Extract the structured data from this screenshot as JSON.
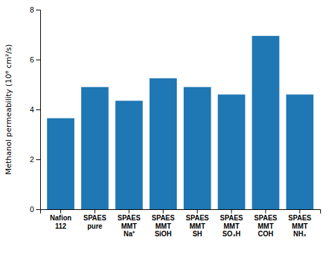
{
  "chart_data": {
    "type": "bar",
    "categories": [
      "Nafion\n112",
      "SPAES\npure",
      "SPAES\nMMT\nNa⁺",
      "SPAES\nMMT\nSiOH",
      "SPAES\nMMT\nSH",
      "SPAES\nMMT\nSO₃H",
      "SPAES\nMMT\nCOH",
      "SPAES\nMMT\nNH₂"
    ],
    "values": [
      3.65,
      4.9,
      4.35,
      5.25,
      4.9,
      4.6,
      6.95,
      4.6
    ],
    "ylabel": "Methanol permeability (10⁸ cm²/s)",
    "ylim": [
      0,
      8
    ],
    "yticks": [
      0,
      2,
      4,
      6,
      8
    ],
    "grid": false
  }
}
